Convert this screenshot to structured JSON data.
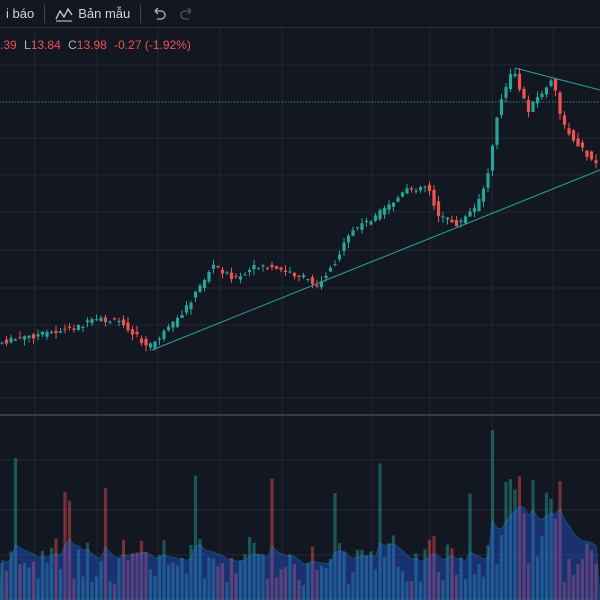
{
  "toolbar": {
    "alerts": "i báo",
    "templates": "Bản mẫu"
  },
  "legend": {
    "high_tail": ".39",
    "low_label": "L",
    "low": "13.84",
    "close_label": "C",
    "close": "13.98",
    "change": "-0.27 (-1.92%)"
  }
}
